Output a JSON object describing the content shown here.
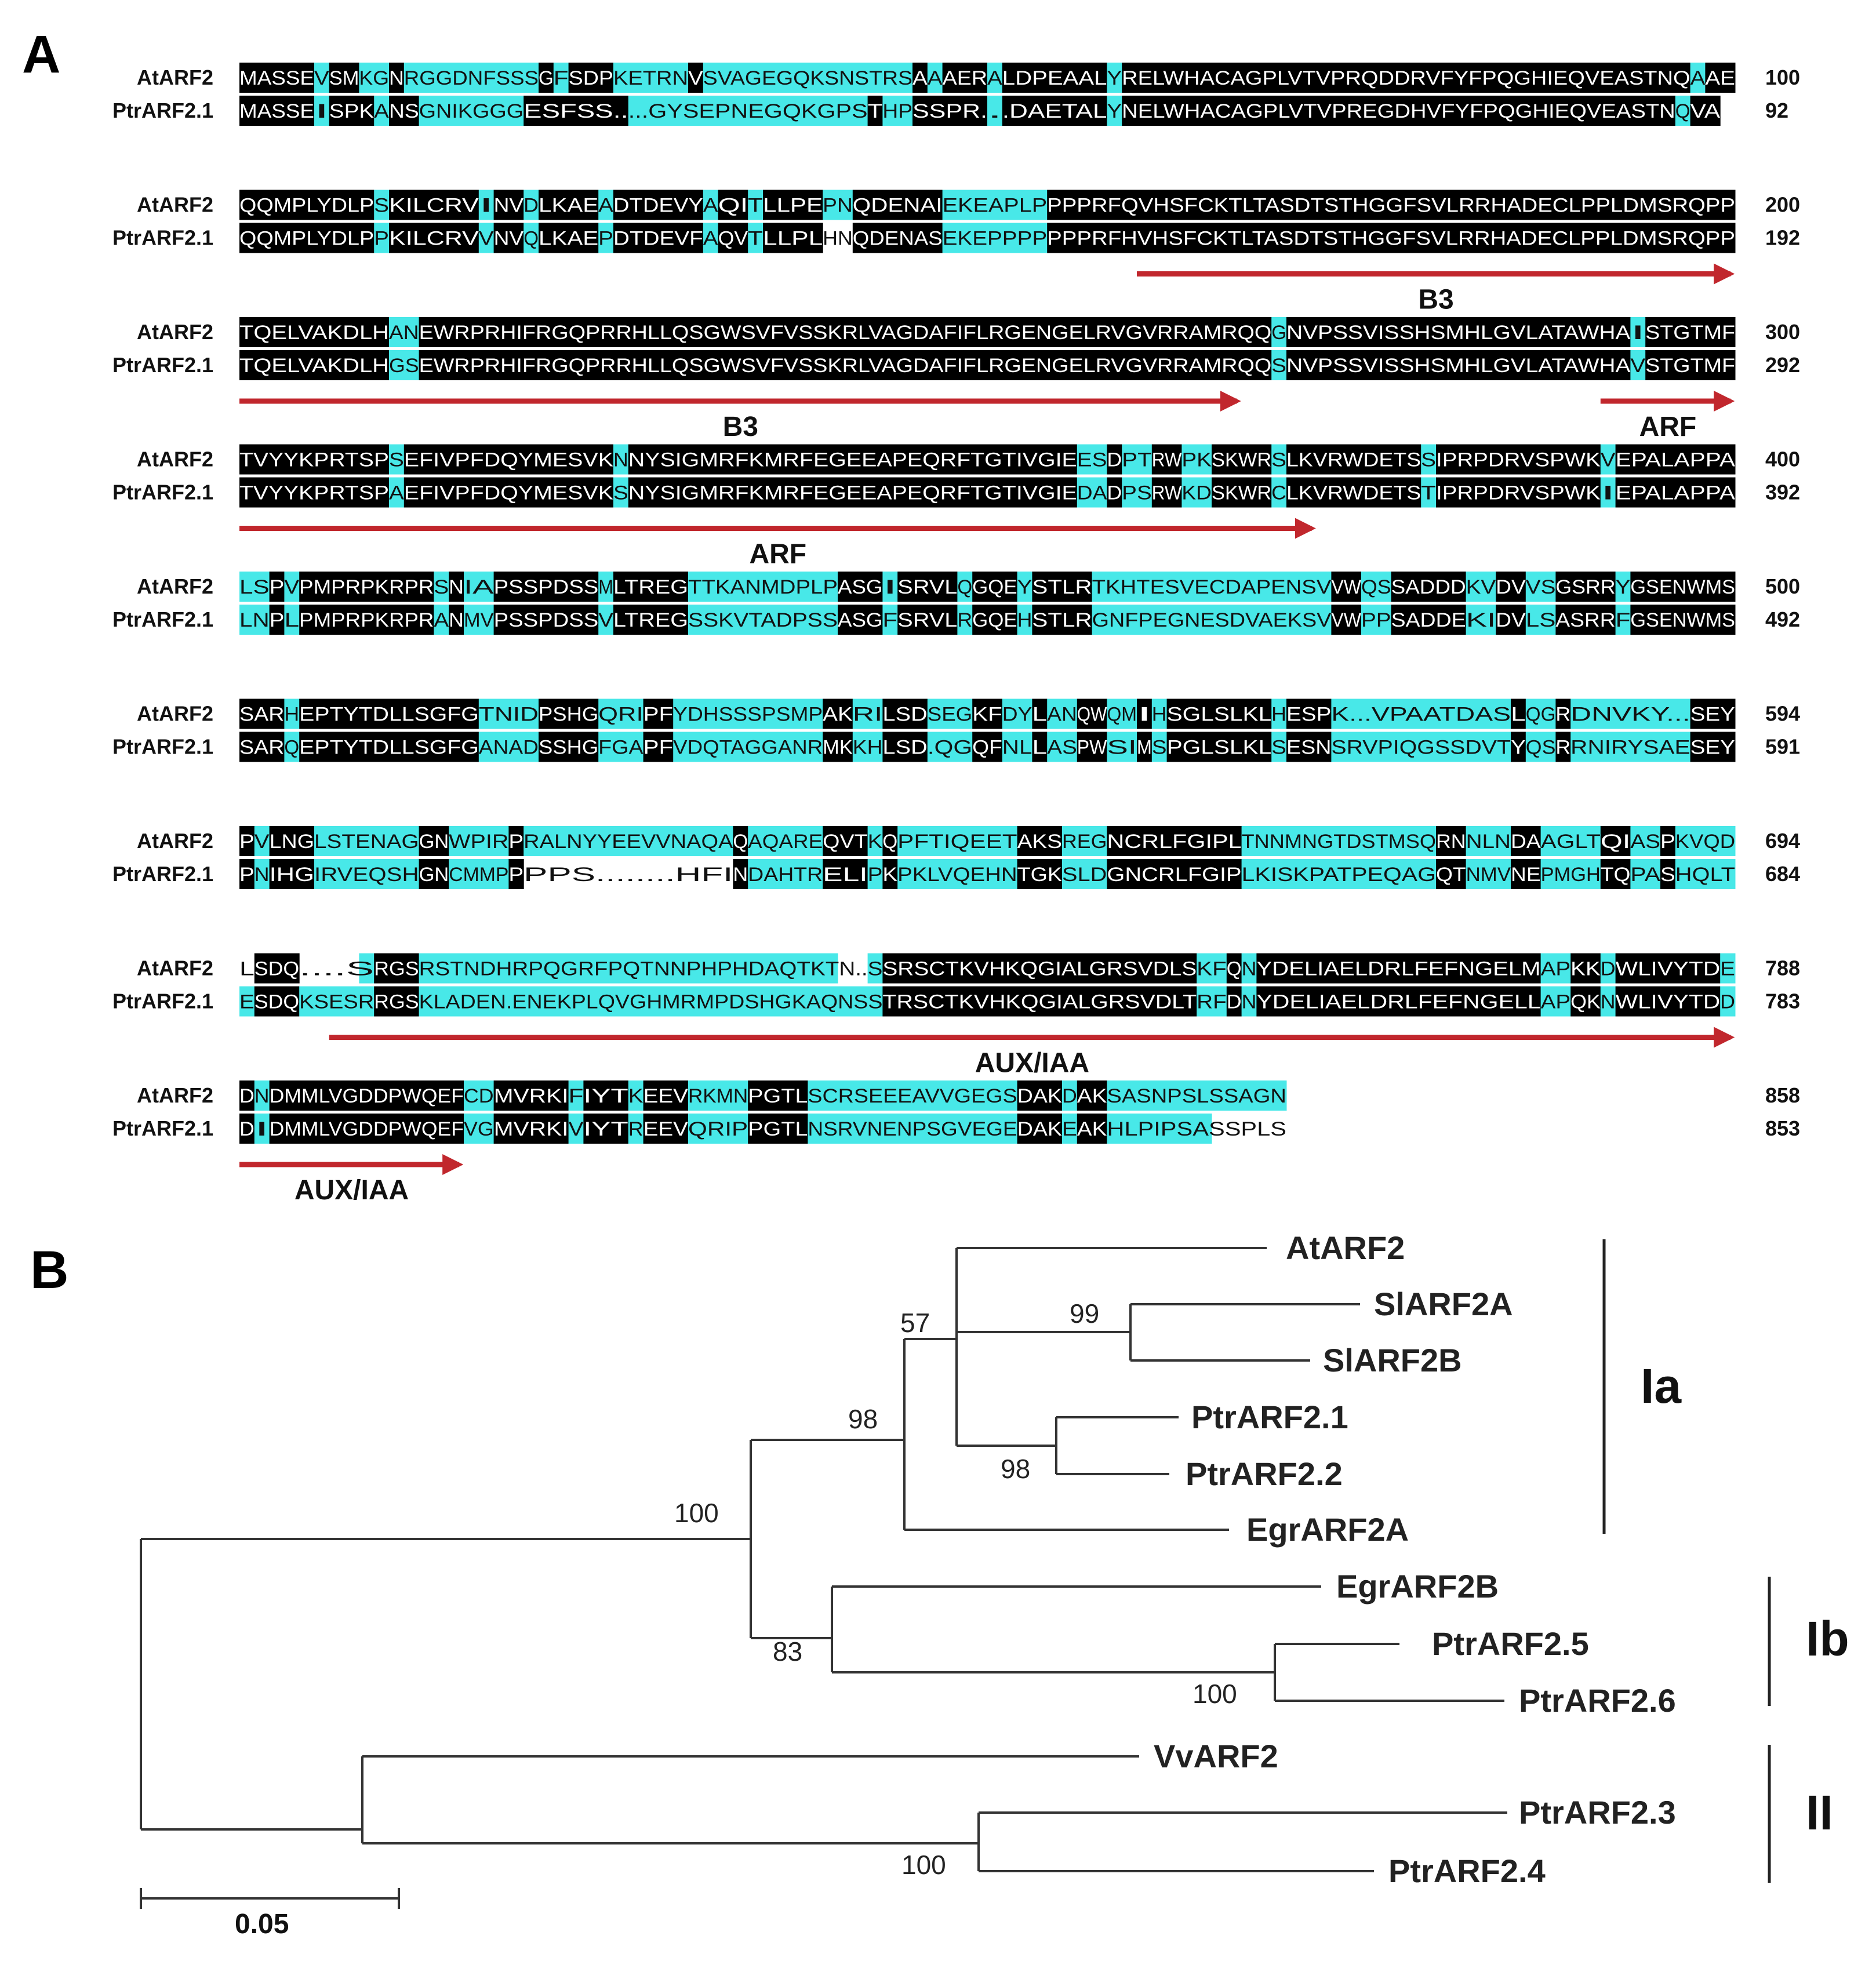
{
  "panels": {
    "a": "A",
    "b": "B"
  },
  "alignment": {
    "seq1": "AtARF2",
    "seq2": "PtrARF2.1",
    "blocks": [
      {
        "n1": "100",
        "n2": "92",
        "s1": "MASSEVSMKGNRGGDNFSSSGFSDPKETRNVSVAGEGQKSNSTRSAAAERALDPEAALYRELWHACAGPLVTVPRQDDRVFYFPQGHIEQVEASTNQAAE",
        "s2": "MASSEISPKANSGNIKGGGESFSS.....GYSEPNEGQKGPSTHPSSPR...DAETALYNELWHACAGPLVTVPREGDHVFYFPQGHIEQVEASTNQVAD",
        "p1": "BBBBBCBBCCBCCCCCCCCCBCBBBCCCCCBCCCCCCCCCCCCCCBCBBBCBBBBBBBCBBBBBBBBBBBBBBBBBBBBBBBBBBBBBBBBBBBBBBCBB",
        "p2": "BBBBBCBBBCBBCCCCCCCBBBBBBBCCCCCCCCCCCCCCCCBCCBBBBBCBBBBBBBCBBBBBBBBBBBBBBBBBBBBBBBBBBBBBBBBBBBBBCBB",
        "features": []
      },
      {
        "n1": "200",
        "n2": "192",
        "s1": "QQMPLYDLPSKILCRVINVDLKAEADTDEVYAQITLLPEPNQDENAIEKEAPLPPPPRFQVHSFCKTLTASDTSTHGGFSVLRRHADECLPPLDMSRQPP",
        "s2": "QQMPLYDLPPKILCRVVNVQLKAEPDTDEVFAQVTLLPLHNQDENASEKEPPPPPPPRFHVHSFCKTLTASDTSTHGGFSVLRRHADECLPPLDMSRQPP",
        "p1": "BBBBBBBBBCBBBBBBCBBCBBBBCBBBBBBCBBCBBBBCCBBBBBBCCCCCCCBBBBBBBBBBBBBBBBBBBBBBBBBBBBBBBBBBBBBBBBBBBBBB",
        "p2": "BBBBBBBBBCBBBBBBCBBCBBBBCBBBBBBCBBCBBBBWWBBBBBBCCCCCCCBBBBBBBBBBBBBBBBBBBBBBBBBBBBBBBBBBBBBBBBBBBBBB",
        "features": [
          {
            "label": "B3",
            "from": 61,
            "to": 100
          }
        ]
      },
      {
        "n1": "300",
        "n2": "292",
        "s1": "TQELVAKDLHANEWRPRHIFRGQPRRHLLQSGWSVFVSSKRLVAGDAFIFLRGENGELRVGVRRAMRQQGNVPSSVISSHSMHLGVLATAWHAISTGTMF",
        "s2": "TQELVAKDLHGSEWRPRHIFRGQPRRHLLQSGWSVFVSSKRLVAGDAFIFLRGENGELRVGVRRAMRQQSNVPSSVISSHSMHLGVLATAWHAVSTGTMF",
        "p1": "BBBBBBBBBBCCBBBBBBBBBBBBBBBBBBBBBBBBBBBBBBBBBBBBBBBBBBBBBBBBBBBBBBBBBCBBBBBBBBBBBBBBBBBBBBBBBCBBBBBB",
        "p2": "BBBBBBBBBBCCBBBBBBBBBBBBBBBBBBBBBBBBBBBBBBBBBBBBBBBBBBBBBBBBBBBBBBBBBCBBBBBBBBBBBBBBBBBBBBBBBCBBBBBB",
        "features": [
          {
            "label": "B3",
            "from": 1,
            "to": 67
          },
          {
            "label": "ARF",
            "from": 92,
            "to": 100
          }
        ]
      },
      {
        "n1": "400",
        "n2": "392",
        "s1": "TVYYKPRTSPSEFIVPFDQYMESVKNNYSIGMRFKMRFEGEEAPEQRFTGTIVGIEESDPTRWPKSKWRSLKVRWDETSSIPRPDRVSPWKVEPALAPPA",
        "s2": "TVYYKPRTSPAEFIVPFDQYMESVKSNYSIGMRFKMRFEGEEAPEQRFTGTIVGIEDADPSRWKDSKWRCLKVRWDETSTIPRPDRVSPWKIEPALAPPA",
        "p1": "BBBBBBBBBBCBBBBBBBBBBBBBBCBBBBBBBBBBBBBBBBBBBBBBBBBBBBBBCCBCCBBCCBBBBCBBBBBBBBBCBBBBBBBBBBBCBBBBBBBB",
        "p2": "BBBBBBBBBBCBBBBBBBBBBBBBBCBBBBBBBBBBBBBBBBBBBBBBBBBBBBBBCCBCCBBCCBBBBCBBBBBBBBBCBBBBBBBBBBBCBBBBBBBB",
        "features": [
          {
            "label": "ARF",
            "from": 1,
            "to": 72
          }
        ]
      },
      {
        "n1": "500",
        "n2": "492",
        "s1": "LSPVPMPRPKRPRSNIAPSSPDSSMLTREGTTKANMDPLPASGISRVLQGQEYSTLRTKHTESVECDAPENSVVWQSSADDDKVDVVSGSRRYGSENWMS",
        "s2": "LNPLPMPRPKRPRANMVPSSPDSSVLTREGSSKVTADPSSASGFSRVLRGQEHSTLRGNFPEGNESDVAEKSVVWPPSADDEKIDVLSASRRFGSENWMS",
        "p1": "CCBCBBBBBBBBBCBCCBBBBBBBCBBBBBCCCCCCCCCCBBBCBBBBCBBBCBBBBCCCCCCCCCCCCCCCCBBCCBBBBBCCBBCCBBBBCBBBBBBB",
        "p2": "CCBCBBBBBBBBBCBCCBBBBBBBCBBBBBCCCCCCCCCCBBBCBBBBCBBBCBBBBCCCCCCCCCCCCCCCCBBCCBBBBBCCBBCCBBBBCBBBBBBB",
        "features": []
      },
      {
        "n1": "594",
        "n2": "591",
        "s1": "SARHEPTYTDLLSGFGTNIDPSHGQRIPFYDHSSSPSMPAKRILSDSEGKFDYLANQWQMIHSGLSLKLHESPK...VPAATDASLQGRDNVKY...SEY",
        "s2": "SARQEPTYTDLLSGFGANADSSHGFGAPFVDQTAGGANRMKKHLSD.QGQFNLLASPWSIMSPGLSLKLSESNSRVPIQGSSDVTYQSRRNIRYSAESEY",
        "p1": "BBBCBBBBBBBBBBBBCCCCBBBBCCCBBCCCCCCCCCCBBCCBBBCCCBBCCBCCBBCCBCBBBBBBBCBBBCCCCCCCCCCCCBCCBCCCCCCCCBBB",
        "p2": "BBBCBBBBBBBBBBBBCCCCBBBBCCCBBCCCCCCCCCCBBCCBBBCCCBBCCBCCBBCCBCBBBBBBBCBBBCCCCCCCCCCCCBCCBCCCCCCCCBBB",
        "features": []
      },
      {
        "n1": "694",
        "n2": "684",
        "s1": "PVLNGLSTENAGGNWPIRPRALNYYEEVVNAQAQAQAREQVTKQPFTIQEETAKSREGNCRLFGIPLTNNMNGTDSTMSQRNNLNDAAGLTQIASPKVQD",
        "s2": "PNIHGIRVEQSHGNCMMPPPPS........HFINDAHTRELIPKPKLVQEHNTGKSLDGNCRLFGIPLKISKPATPEQAGQTNMVNEPMGHTQPASHQLTS",
        "p1": "BCBBBCCCCCCCBBCCCCBCCCCCCCCCCCCCCBCCCCCBBBCBCCCCCCCCBBBCCCBBBBBBBBBCCCCCCCCCCCCCBBCCCBBCCCCBBCCBCCCC",
        "p2": "BCBBBCCCCCCCBBCCCCBWWWWWWWWWWWWWWBCCCCCBBBCBCCCCCCCCBBBCCCBBBBBBBBBCCCCCCCCCCCCCBBCCCBBCCCCBBCCBCCCC",
        "features": []
      },
      {
        "n1": "788",
        "n2": "783",
        "s1": "LSDQ....SRGSRSTNDHRPQGRFPQTNNPHPHDAQTKTN..SSRSCTKVHKQGIALGRSVDLSKFQNYDELIAELDRLFEFNGELMAPKKDWLIVYTDE",
        "s2": "ESDQKSESRRGSKLADEN.ENEKPLQVGHMRMPDSHGKAQNSSTRSCTKVHKQGIALGRSVDLTRFDNYDELIAELDRLFEFNGELLAPQKNWLIVYTDD",
        "p1": "WBBBWWWWCBBBCCCCCCCCCCCCCCCCCCCCCCCCCCCCWWCBBBBBBBBBBBBBBBBBBBBBCCBCBBBBBBBBBBBBBBBBBBBCCBBCBBBBBBBC",
        "p2": "CBBBCCCCCBBBCCCCCCCCCCCCCCCCCCCCCCCCCCCCCCCBBBBBBBBBBBBBBBBBBBBBCCBCBBBBBBBBBBBBBBBBBBBCCBBCBBBBBBBC",
        "features": [
          {
            "label": "AUX/IAA",
            "from": 7,
            "to": 100
          }
        ]
      },
      {
        "n1": "858",
        "n2": "853",
        "s1": "DNDMMLVGDDPWQEFCDMVRKIFIYTKEEVRKMNPGTLSCRSEEEAVVGEGSDAKDAKSASNPSLSSAGN",
        "s2": "DIDMMLVGDDPWQEFVGMVRKIVIYTREEVQRIPPGTLNSRVNENPSGVEGEDAKEAKHLPIPSASSPLS",
        "p1": "BCBBBBBBBBBBBBBCCBBBBBCBBBCBBBCCCCBBBBCCCCCCCCCCCCCCBBBCBBCCCCCCCCCCCC",
        "p2": "BCBBBBBBBBBBBBBCCBBBBBCBBBCBBBCCCCBBBBCCCCCCCCCCCCCCBBBCBBCCCCCCCWWWWW",
        "features": [
          {
            "label": "AUX/IAA",
            "from": 1,
            "to": 15
          }
        ]
      }
    ]
  },
  "tree": {
    "taxa": [
      "AtARF2",
      "SlARF2A",
      "SlARF2B",
      "PtrARF2.1",
      "PtrARF2.2",
      "EgrARF2A",
      "EgrARF2B",
      "PtrARF2.5",
      "PtrARF2.6",
      "VvARF2",
      "PtrARF2.3",
      "PtrARF2.4"
    ],
    "bootstraps": [
      "57",
      "99",
      "98",
      "98",
      "100",
      "83",
      "100",
      "100"
    ],
    "clades": [
      "Ia",
      "Ib",
      "II"
    ],
    "scale_label": "0.05",
    "scale_value": 0.05
  },
  "colors": {
    "identical": "#000000",
    "similar": "#48e8e8",
    "arrow": "#c1272d"
  }
}
